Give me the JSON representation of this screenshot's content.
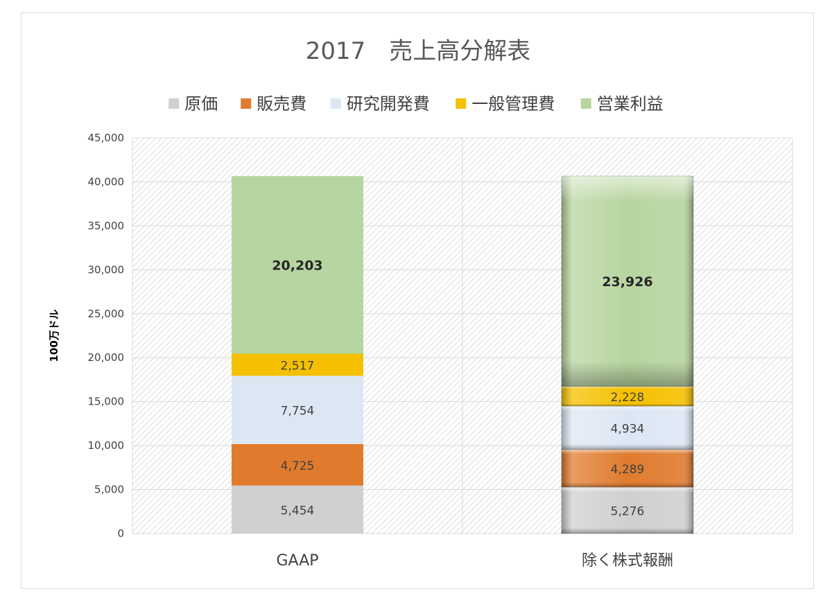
{
  "chart_data": {
    "type": "bar",
    "stacked": true,
    "title": "2017　売上高分解表",
    "ylabel": "100万ドル",
    "xlabel": "",
    "ylim": [
      0,
      45000
    ],
    "yticks": [
      0,
      5000,
      10000,
      15000,
      20000,
      25000,
      30000,
      35000,
      40000,
      45000
    ],
    "ytick_labels": [
      "0",
      "5,000",
      "10,000",
      "15,000",
      "20,000",
      "25,000",
      "30,000",
      "35,000",
      "40,000",
      "45,000"
    ],
    "categories": [
      "GAAP",
      "除く株式報酬"
    ],
    "legend_position": "top",
    "grid": true,
    "series": [
      {
        "name": "原価",
        "color": "#d0d0d0",
        "values": [
          5454,
          5276
        ],
        "labels": [
          "5,454",
          "5,276"
        ]
      },
      {
        "name": "販売費",
        "color": "#e07b2e",
        "values": [
          4725,
          4289
        ],
        "labels": [
          "4,725",
          "4,289"
        ]
      },
      {
        "name": "研究開発費",
        "color": "#dde7f4",
        "values": [
          7754,
          4934
        ],
        "labels": [
          "7,754",
          "4,934"
        ]
      },
      {
        "name": "一般管理費",
        "color": "#f5c000",
        "values": [
          2517,
          2228
        ],
        "labels": [
          "2,517",
          "2,228"
        ]
      },
      {
        "name": "営業利益",
        "color": "#b7d5a0",
        "values": [
          20203,
          23926
        ],
        "labels": [
          "20,203",
          "23,926"
        ]
      }
    ]
  }
}
